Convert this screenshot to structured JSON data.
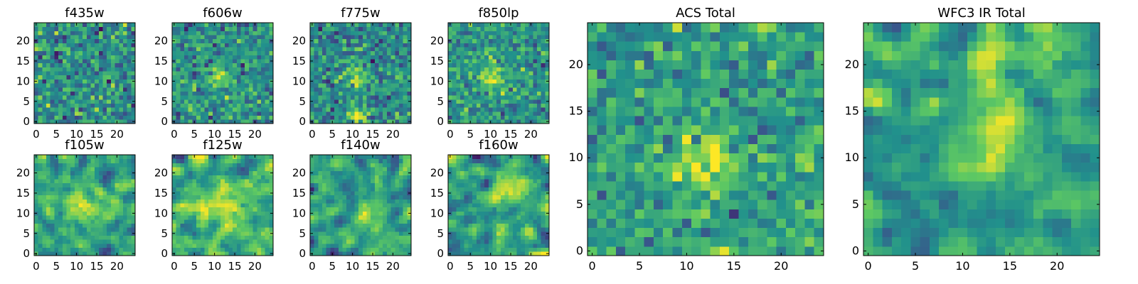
{
  "figure": {
    "background": "#ffffff",
    "colormap": "viridis",
    "colormap_stops": [
      "#440154",
      "#3b528b",
      "#21918c",
      "#5ec962",
      "#fde725"
    ]
  },
  "chart_data": [
    {
      "type": "heatmap",
      "title": "f435w",
      "grid_size": 25,
      "xlim": [
        -0.5,
        24.5
      ],
      "ylim": [
        -0.5,
        24.5
      ],
      "xticks": [
        "0",
        "5",
        "10",
        "15",
        "20"
      ],
      "yticks": [
        "0",
        "5",
        "10",
        "15",
        "20"
      ],
      "axis_placement": "row-1",
      "seed": 11,
      "smooth": 0,
      "blobs": [],
      "noise": 0.35,
      "base": 0.5
    },
    {
      "type": "heatmap",
      "title": "f606w",
      "grid_size": 25,
      "xlim": [
        -0.5,
        24.5
      ],
      "ylim": [
        -0.5,
        24.5
      ],
      "xticks": [
        "0",
        "5",
        "10",
        "15",
        "20"
      ],
      "yticks": [
        "0",
        "5",
        "10",
        "15",
        "20"
      ],
      "axis_placement": "row-1",
      "seed": 23,
      "smooth": 0,
      "blobs": [
        [
          11,
          11,
          1.8,
          0.35
        ]
      ],
      "noise": 0.3,
      "base": 0.5
    },
    {
      "type": "heatmap",
      "title": "f775w",
      "grid_size": 25,
      "xlim": [
        -0.5,
        24.5
      ],
      "ylim": [
        -0.5,
        24.5
      ],
      "xticks": [
        "0",
        "5",
        "10",
        "15",
        "20"
      ],
      "yticks": [
        "0",
        "5",
        "10",
        "15",
        "20"
      ],
      "axis_placement": "row-1",
      "seed": 37,
      "smooth": 0,
      "blobs": [
        [
          11,
          2,
          1.6,
          0.45
        ],
        [
          11,
          11,
          2.2,
          0.25
        ]
      ],
      "noise": 0.32,
      "base": 0.48
    },
    {
      "type": "heatmap",
      "title": "f850lp",
      "grid_size": 25,
      "xlim": [
        -0.5,
        24.5
      ],
      "ylim": [
        -0.5,
        24.5
      ],
      "xticks": [
        "0",
        "5",
        "10",
        "15",
        "20"
      ],
      "yticks": [
        "0",
        "5",
        "10",
        "15",
        "20"
      ],
      "axis_placement": "row-1",
      "seed": 41,
      "smooth": 0,
      "blobs": [
        [
          11,
          11,
          2.4,
          0.35
        ]
      ],
      "noise": 0.3,
      "base": 0.52
    },
    {
      "type": "heatmap",
      "title": "f105w",
      "grid_size": 25,
      "xlim": [
        -0.5,
        24.5
      ],
      "ylim": [
        -0.5,
        24.5
      ],
      "xticks": [
        "0",
        "5",
        "10",
        "15",
        "20"
      ],
      "yticks": [
        "0",
        "5",
        "10",
        "15",
        "20"
      ],
      "axis_placement": "row-2",
      "seed": 53,
      "smooth": 1,
      "blobs": [
        [
          12,
          12,
          3,
          0.3
        ]
      ],
      "noise": 0.35,
      "base": 0.58
    },
    {
      "type": "heatmap",
      "title": "f125w",
      "grid_size": 25,
      "xlim": [
        -0.5,
        24.5
      ],
      "ylim": [
        -0.5,
        24.5
      ],
      "xticks": [
        "0",
        "5",
        "10",
        "15",
        "20"
      ],
      "yticks": [
        "0",
        "5",
        "10",
        "15",
        "20"
      ],
      "axis_placement": "row-2",
      "seed": 67,
      "smooth": 1,
      "blobs": [
        [
          12,
          12,
          3,
          0.25
        ]
      ],
      "noise": 0.35,
      "base": 0.6
    },
    {
      "type": "heatmap",
      "title": "f140w",
      "grid_size": 25,
      "xlim": [
        -0.5,
        24.5
      ],
      "ylim": [
        -0.5,
        24.5
      ],
      "xticks": [
        "0",
        "5",
        "10",
        "15",
        "20"
      ],
      "yticks": [
        "0",
        "5",
        "10",
        "15",
        "20"
      ],
      "axis_placement": "row-2",
      "seed": 71,
      "smooth": 1,
      "blobs": [
        [
          14,
          10,
          2.5,
          0.35
        ]
      ],
      "noise": 0.35,
      "base": 0.55
    },
    {
      "type": "heatmap",
      "title": "f160w",
      "grid_size": 25,
      "xlim": [
        -0.5,
        24.5
      ],
      "ylim": [
        -0.5,
        24.5
      ],
      "xticks": [
        "0",
        "5",
        "10",
        "15",
        "20"
      ],
      "yticks": [
        "0",
        "5",
        "10",
        "15",
        "20"
      ],
      "axis_placement": "row-2",
      "seed": 83,
      "smooth": 1,
      "blobs": [
        [
          14,
          16,
          2.8,
          0.35
        ]
      ],
      "noise": 0.35,
      "base": 0.55
    },
    {
      "type": "heatmap",
      "title": "ACS Total",
      "grid_size": 25,
      "xlim": [
        -0.5,
        24.5
      ],
      "ylim": [
        -0.5,
        24.5
      ],
      "xticks": [
        "0",
        "5",
        "10",
        "15",
        "20"
      ],
      "yticks": [
        "0",
        "5",
        "10",
        "15",
        "20"
      ],
      "axis_placement": "large",
      "seed": 97,
      "smooth": 0,
      "blobs": [
        [
          12,
          9,
          2.2,
          0.4
        ]
      ],
      "noise": 0.3,
      "base": 0.55
    },
    {
      "type": "heatmap",
      "title": "WFC3 IR Total",
      "grid_size": 25,
      "xlim": [
        -0.5,
        24.5
      ],
      "ylim": [
        -0.5,
        24.5
      ],
      "xticks": [
        "0",
        "5",
        "10",
        "15",
        "20"
      ],
      "yticks": [
        "0",
        "5",
        "10",
        "15",
        "20"
      ],
      "axis_placement": "large",
      "seed": 109,
      "smooth": 1,
      "blobs": [
        [
          13,
          13,
          2.6,
          0.4
        ],
        [
          15,
          20,
          2.5,
          0.2
        ]
      ],
      "noise": 0.3,
      "base": 0.55
    }
  ]
}
